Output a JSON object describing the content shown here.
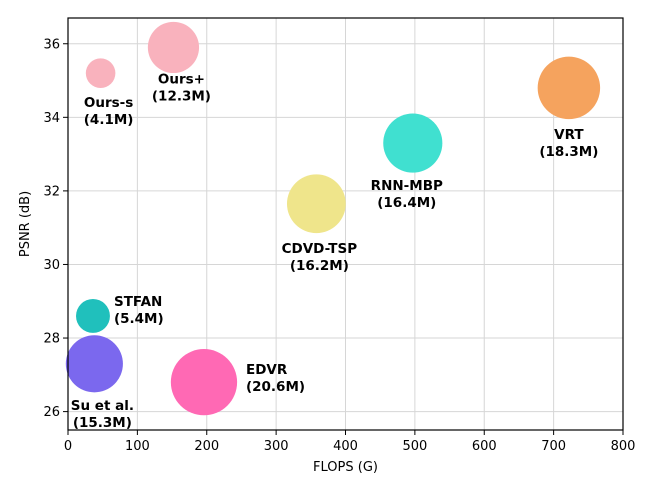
{
  "chart_data": {
    "type": "scatter",
    "xlabel": "FLOPS (G)",
    "ylabel": "PSNR (dB)",
    "xlim": [
      0,
      800
    ],
    "ylim": [
      25.5,
      36.7
    ],
    "xticks": [
      0,
      100,
      200,
      300,
      400,
      500,
      600,
      700,
      800
    ],
    "yticks": [
      26,
      28,
      30,
      32,
      34,
      36
    ],
    "grid": true,
    "points": [
      {
        "name": "Ours-s",
        "params": "(4.1M)",
        "size_m": 4.1,
        "x": 47,
        "y": 35.2,
        "color": "#f9b2bd"
      },
      {
        "name": "Ours+",
        "params": "(12.3M)",
        "size_m": 12.3,
        "x": 152,
        "y": 35.9,
        "color": "#f9b2bd"
      },
      {
        "name": "VRT",
        "params": "(18.3M)",
        "size_m": 18.3,
        "x": 722,
        "y": 34.8,
        "color": "#f5a35e"
      },
      {
        "name": "RNN-MBP",
        "params": "(16.4M)",
        "size_m": 16.4,
        "x": 497,
        "y": 33.3,
        "color": "#40e0d0"
      },
      {
        "name": "CDVD-TSP",
        "params": "(16.2M)",
        "size_m": 16.2,
        "x": 358,
        "y": 31.65,
        "color": "#efe58b"
      },
      {
        "name": "STFAN",
        "params": "(5.4M)",
        "size_m": 5.4,
        "x": 36,
        "y": 28.6,
        "color": "#20c0bc"
      },
      {
        "name": "Su et al.",
        "params": "(15.3M)",
        "size_m": 15.3,
        "x": 38,
        "y": 27.3,
        "color": "#7b68ee"
      },
      {
        "name": "EDVR",
        "params": "(20.6M)",
        "size_m": 20.6,
        "x": 196,
        "y": 26.8,
        "color": "#ff69b4"
      }
    ]
  }
}
